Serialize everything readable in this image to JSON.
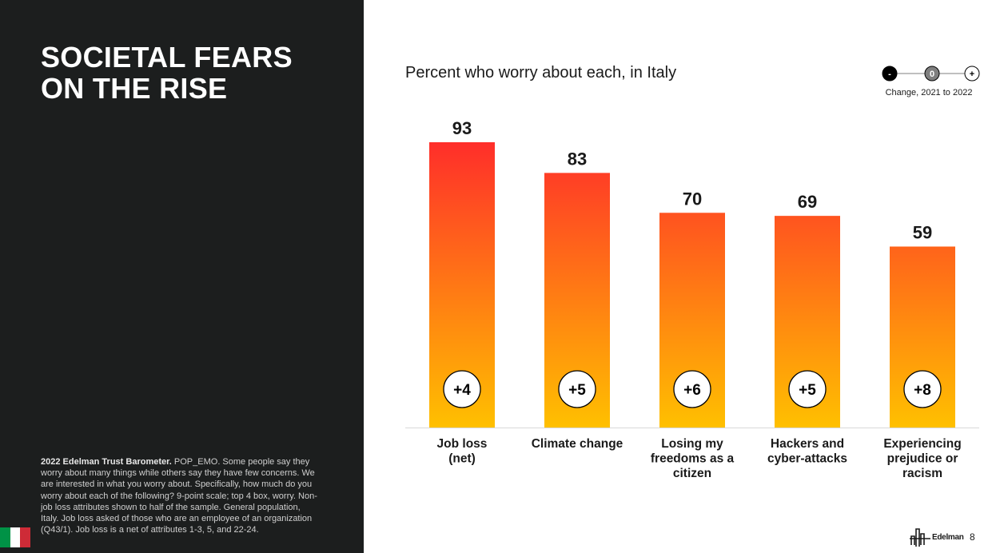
{
  "headline": {
    "line1": "SOCIETAL FEARS",
    "line2": "ON THE RISE"
  },
  "footnote": {
    "source": "2022 Edelman Trust Barometer.",
    "text": " POP_EMO. Some people say they worry about many things while others say they have few concerns. We are interested in what you worry about. Specifically, how much do you worry about each of the following? 9-point scale; top 4 box, worry. Non-job loss attributes shown to half of the sample. General population, Italy. Job loss asked of those who are an employee of an organization (Q43/1). Job loss is a net of attributes 1-3, 5, and 22-24."
  },
  "flag": {
    "colors": [
      "#009246",
      "#ffffff",
      "#ce2b37"
    ]
  },
  "brand": {
    "name": "Edelman",
    "page_number": "8"
  },
  "colors": {
    "panel": "#1c1e1e",
    "bar_top": "#ff2e2a",
    "bar_bottom": "#ffc000",
    "text": "#1a1a1a"
  },
  "chart_data": {
    "type": "bar",
    "title": "Percent who worry about each, in Italy",
    "categories": [
      [
        "Job loss",
        "(net)"
      ],
      [
        "Climate change"
      ],
      [
        "Losing my",
        "freedoms as a",
        "citizen"
      ],
      [
        "Hackers and",
        "cyber-attacks"
      ],
      [
        "Experiencing",
        "prejudice or",
        "racism"
      ]
    ],
    "values": [
      93,
      83,
      70,
      69,
      59
    ],
    "value_labels": [
      "93",
      "83",
      "70",
      "69",
      "59"
    ],
    "change_labels": [
      "+4",
      "+5",
      "+6",
      "+5",
      "+8"
    ],
    "ylim": [
      0,
      100
    ],
    "grid": false,
    "legend": {
      "position": "top-right",
      "markers": [
        {
          "label": "-",
          "fill": "#000000",
          "text_color": "#ffffff"
        },
        {
          "label": "0",
          "fill": "#7f7f7f",
          "text_color": "#ffffff"
        },
        {
          "label": "+",
          "fill": "#ffffff",
          "text_color": "#000000"
        }
      ],
      "caption": "Change, 2021 to 2022"
    }
  }
}
